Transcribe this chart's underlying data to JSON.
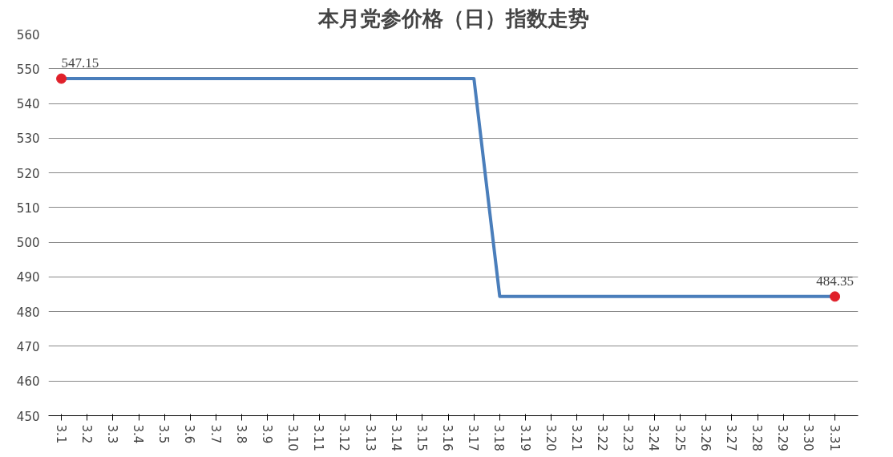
{
  "chart_data": {
    "type": "line",
    "title": "本月党参价格（日）指数走势",
    "categories": [
      "3.1",
      "3.2",
      "3.3",
      "3.4",
      "3.5",
      "3.6",
      "3.7",
      "3.8",
      "3.9",
      "3.10",
      "3.11",
      "3.12",
      "3.13",
      "3.14",
      "3.15",
      "3.16",
      "3.17",
      "3.18",
      "3.19",
      "3.20",
      "3.21",
      "3.22",
      "3.23",
      "3.24",
      "3.25",
      "3.26",
      "3.27",
      "3.28",
      "3.29",
      "3.30",
      "3.31"
    ],
    "series": [
      {
        "color": "#4a7ebb",
        "values": [
          547.15,
          547.15,
          547.15,
          547.15,
          547.15,
          547.15,
          547.15,
          547.15,
          547.15,
          547.15,
          547.15,
          547.15,
          547.15,
          547.15,
          547.15,
          547.15,
          547.15,
          484.35,
          484.35,
          484.35,
          484.35,
          484.35,
          484.35,
          484.35,
          484.35,
          484.35,
          484.35,
          484.35,
          484.35,
          484.35,
          484.35
        ]
      },
      {
        "type": "scatter",
        "marker": "circle",
        "color": "#e0202a",
        "x": [
          "3.1",
          "3.31"
        ],
        "values": [
          547.15,
          484.35
        ],
        "value_labels": [
          "547.15",
          "484.35"
        ]
      }
    ],
    "ylim": [
      450,
      560
    ],
    "yticks": [
      450,
      460,
      470,
      480,
      490,
      500,
      510,
      520,
      530,
      540,
      550,
      560
    ],
    "grid": "y"
  }
}
